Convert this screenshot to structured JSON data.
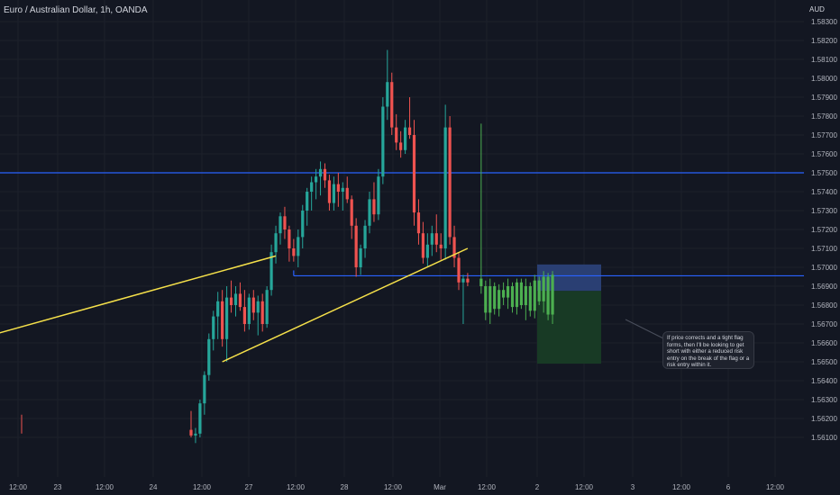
{
  "chart_data": {
    "type": "candlestick",
    "title": "Euro / Australian Dollar, 1h, OANDA",
    "currency": "AUD",
    "ylim": [
      1.561,
      1.5835
    ],
    "y_ticks": [
      "1.58300",
      "1.58200",
      "1.58100",
      "1.58000",
      "1.57900",
      "1.57800",
      "1.57700",
      "1.57600",
      "1.57500",
      "1.57400",
      "1.57300",
      "1.57200",
      "1.57100",
      "1.57000",
      "1.56900",
      "1.56800",
      "1.56700",
      "1.56600",
      "1.56500",
      "1.56400",
      "1.56300",
      "1.56200",
      "1.56100"
    ],
    "x_ticks": [
      "12:00",
      "23",
      "12:00",
      "24",
      "12:00",
      "27",
      "12:00",
      "28",
      "12:00",
      "Mar",
      "12:00",
      "2",
      "12:00",
      "3",
      "12:00",
      "6",
      "12:00"
    ],
    "colors": {
      "up": "#26a69a",
      "down": "#ef5350",
      "projection": "#4caf50",
      "horizontal_line": "#2962ff",
      "trend_line": "#f5e04a",
      "stop_zone": "#2a3f73",
      "target_zone": "#183a25"
    },
    "candles": [
      {
        "o": 1.5614,
        "h": 1.5624,
        "l": 1.561,
        "c": 1.5611
      },
      {
        "o": 1.5611,
        "h": 1.5615,
        "l": 1.5607,
        "c": 1.5612
      },
      {
        "o": 1.5612,
        "h": 1.563,
        "l": 1.561,
        "c": 1.5628
      },
      {
        "o": 1.5628,
        "h": 1.5645,
        "l": 1.5622,
        "c": 1.5643
      },
      {
        "o": 1.5643,
        "h": 1.5665,
        "l": 1.564,
        "c": 1.5662
      },
      {
        "o": 1.5662,
        "h": 1.5677,
        "l": 1.5656,
        "c": 1.5674
      },
      {
        "o": 1.5674,
        "h": 1.5687,
        "l": 1.5662,
        "c": 1.5682
      },
      {
        "o": 1.5682,
        "h": 1.5688,
        "l": 1.5658,
        "c": 1.5662
      },
      {
        "o": 1.5662,
        "h": 1.569,
        "l": 1.565,
        "c": 1.5684
      },
      {
        "o": 1.5684,
        "h": 1.5693,
        "l": 1.5676,
        "c": 1.568
      },
      {
        "o": 1.568,
        "h": 1.569,
        "l": 1.5674,
        "c": 1.5686
      },
      {
        "o": 1.5686,
        "h": 1.5692,
        "l": 1.5677,
        "c": 1.5679
      },
      {
        "o": 1.5679,
        "h": 1.5688,
        "l": 1.5666,
        "c": 1.567
      },
      {
        "o": 1.567,
        "h": 1.5686,
        "l": 1.5667,
        "c": 1.5684
      },
      {
        "o": 1.5684,
        "h": 1.5688,
        "l": 1.5672,
        "c": 1.5676
      },
      {
        "o": 1.5676,
        "h": 1.5685,
        "l": 1.5664,
        "c": 1.5682
      },
      {
        "o": 1.5682,
        "h": 1.5686,
        "l": 1.5666,
        "c": 1.567
      },
      {
        "o": 1.567,
        "h": 1.569,
        "l": 1.5668,
        "c": 1.5688
      },
      {
        "o": 1.5688,
        "h": 1.5712,
        "l": 1.5685,
        "c": 1.5708
      },
      {
        "o": 1.5708,
        "h": 1.5722,
        "l": 1.5702,
        "c": 1.5718
      },
      {
        "o": 1.5718,
        "h": 1.5729,
        "l": 1.5712,
        "c": 1.5727
      },
      {
        "o": 1.5727,
        "h": 1.5732,
        "l": 1.5715,
        "c": 1.572
      },
      {
        "o": 1.572,
        "h": 1.5722,
        "l": 1.5703,
        "c": 1.571
      },
      {
        "o": 1.571,
        "h": 1.5715,
        "l": 1.5703,
        "c": 1.5706
      },
      {
        "o": 1.5706,
        "h": 1.572,
        "l": 1.57,
        "c": 1.5716
      },
      {
        "o": 1.5716,
        "h": 1.5733,
        "l": 1.571,
        "c": 1.573
      },
      {
        "o": 1.573,
        "h": 1.5742,
        "l": 1.5722,
        "c": 1.574
      },
      {
        "o": 1.574,
        "h": 1.5748,
        "l": 1.573,
        "c": 1.5745
      },
      {
        "o": 1.5745,
        "h": 1.5752,
        "l": 1.5736,
        "c": 1.5748
      },
      {
        "o": 1.5748,
        "h": 1.5756,
        "l": 1.5738,
        "c": 1.5752
      },
      {
        "o": 1.5752,
        "h": 1.5755,
        "l": 1.5742,
        "c": 1.5746
      },
      {
        "o": 1.5746,
        "h": 1.5749,
        "l": 1.573,
        "c": 1.5734
      },
      {
        "o": 1.5734,
        "h": 1.5748,
        "l": 1.573,
        "c": 1.5744
      },
      {
        "o": 1.5744,
        "h": 1.575,
        "l": 1.5732,
        "c": 1.574
      },
      {
        "o": 1.574,
        "h": 1.5745,
        "l": 1.573,
        "c": 1.5742
      },
      {
        "o": 1.5742,
        "h": 1.5748,
        "l": 1.5734,
        "c": 1.5736
      },
      {
        "o": 1.5736,
        "h": 1.5738,
        "l": 1.5715,
        "c": 1.5722
      },
      {
        "o": 1.5722,
        "h": 1.5726,
        "l": 1.5695,
        "c": 1.57
      },
      {
        "o": 1.57,
        "h": 1.5712,
        "l": 1.5696,
        "c": 1.571
      },
      {
        "o": 1.571,
        "h": 1.5725,
        "l": 1.5705,
        "c": 1.5722
      },
      {
        "o": 1.5722,
        "h": 1.574,
        "l": 1.5718,
        "c": 1.5736
      },
      {
        "o": 1.5736,
        "h": 1.5745,
        "l": 1.5724,
        "c": 1.5728
      },
      {
        "o": 1.5728,
        "h": 1.5752,
        "l": 1.5725,
        "c": 1.5748
      },
      {
        "o": 1.5748,
        "h": 1.579,
        "l": 1.5744,
        "c": 1.5785
      },
      {
        "o": 1.5785,
        "h": 1.5815,
        "l": 1.5778,
        "c": 1.5798
      },
      {
        "o": 1.5798,
        "h": 1.5803,
        "l": 1.577,
        "c": 1.5774
      },
      {
        "o": 1.5774,
        "h": 1.5781,
        "l": 1.5762,
        "c": 1.5766
      },
      {
        "o": 1.5766,
        "h": 1.5772,
        "l": 1.5758,
        "c": 1.5762
      },
      {
        "o": 1.5762,
        "h": 1.5778,
        "l": 1.576,
        "c": 1.5774
      },
      {
        "o": 1.5774,
        "h": 1.579,
        "l": 1.5768,
        "c": 1.577
      },
      {
        "o": 1.577,
        "h": 1.5778,
        "l": 1.5722,
        "c": 1.5729
      },
      {
        "o": 1.5729,
        "h": 1.5736,
        "l": 1.5712,
        "c": 1.5718
      },
      {
        "o": 1.5718,
        "h": 1.5724,
        "l": 1.5702,
        "c": 1.5705
      },
      {
        "o": 1.5705,
        "h": 1.5718,
        "l": 1.57,
        "c": 1.5712
      },
      {
        "o": 1.5712,
        "h": 1.5722,
        "l": 1.5706,
        "c": 1.5718
      },
      {
        "o": 1.5718,
        "h": 1.5728,
        "l": 1.5708,
        "c": 1.5712
      },
      {
        "o": 1.5712,
        "h": 1.5718,
        "l": 1.5704,
        "c": 1.571
      },
      {
        "o": 1.571,
        "h": 1.5786,
        "l": 1.5704,
        "c": 1.5774
      },
      {
        "o": 1.5774,
        "h": 1.578,
        "l": 1.5712,
        "c": 1.5716
      },
      {
        "o": 1.5716,
        "h": 1.5722,
        "l": 1.57,
        "c": 1.5705
      },
      {
        "o": 1.5705,
        "h": 1.5708,
        "l": 1.5688,
        "c": 1.5692
      },
      {
        "o": 1.5692,
        "h": 1.5696,
        "l": 1.567,
        "c": 1.5694
      },
      {
        "o": 1.5694,
        "h": 1.5697,
        "l": 1.569,
        "c": 1.5692
      }
    ],
    "projection": [
      {
        "o": 1.5694,
        "h": 1.5776,
        "l": 1.5686,
        "c": 1.569
      },
      {
        "o": 1.569,
        "h": 1.5693,
        "l": 1.5672,
        "c": 1.5676
      },
      {
        "o": 1.5676,
        "h": 1.5694,
        "l": 1.567,
        "c": 1.569
      },
      {
        "o": 1.569,
        "h": 1.5692,
        "l": 1.5675,
        "c": 1.5678
      },
      {
        "o": 1.5678,
        "h": 1.5691,
        "l": 1.5674,
        "c": 1.5688
      },
      {
        "o": 1.5688,
        "h": 1.5692,
        "l": 1.568,
        "c": 1.5684
      },
      {
        "o": 1.5684,
        "h": 1.5694,
        "l": 1.5678,
        "c": 1.569
      },
      {
        "o": 1.569,
        "h": 1.5692,
        "l": 1.5676,
        "c": 1.5679
      },
      {
        "o": 1.5679,
        "h": 1.5694,
        "l": 1.5675,
        "c": 1.5692
      },
      {
        "o": 1.5692,
        "h": 1.5694,
        "l": 1.5678,
        "c": 1.568
      },
      {
        "o": 1.568,
        "h": 1.5694,
        "l": 1.5672,
        "c": 1.569
      },
      {
        "o": 1.569,
        "h": 1.5692,
        "l": 1.5674,
        "c": 1.5677
      },
      {
        "o": 1.5677,
        "h": 1.5696,
        "l": 1.5673,
        "c": 1.5693
      },
      {
        "o": 1.5693,
        "h": 1.5695,
        "l": 1.568,
        "c": 1.5682
      },
      {
        "o": 1.5682,
        "h": 1.5698,
        "l": 1.5676,
        "c": 1.5695
      },
      {
        "o": 1.5695,
        "h": 1.5697,
        "l": 1.5672,
        "c": 1.5675
      },
      {
        "o": 1.5675,
        "h": 1.5698,
        "l": 1.567,
        "c": 1.5696
      }
    ],
    "horizontal_lines": [
      1.575,
      1.56955
    ],
    "support_segment_start_bar": 23,
    "stop_zone": {
      "top": 1.57015,
      "bottom": 1.56875
    },
    "target_zone": {
      "top": 1.56875,
      "bottom": 1.5649
    },
    "trend_lines": [
      {
        "from": {
          "bar": -51,
          "price": 1.566
        },
        "to": {
          "bar": 19,
          "price": 1.5706
        }
      },
      {
        "from": {
          "bar": 7,
          "price": 1.565
        },
        "to": {
          "bar": 62,
          "price": 1.571
        }
      }
    ],
    "annotation": "If price corrects and a tight flag forms, then I'll be looking to get short with either a reduced risk entry on the break of the flag or a risk entry within it."
  }
}
